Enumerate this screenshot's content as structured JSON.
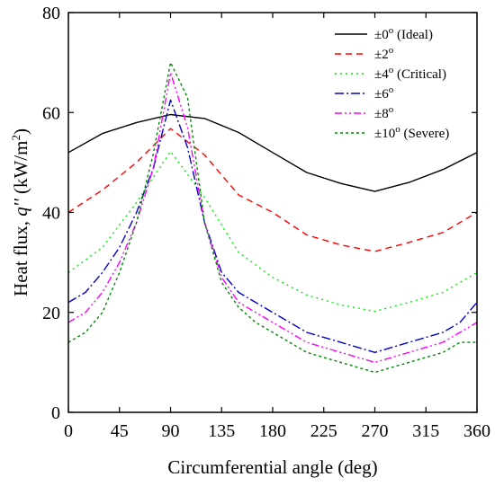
{
  "chart_data": {
    "type": "line",
    "title": "",
    "xlabel": "Circumferential angle (deg)",
    "ylabel_main": "Heat flux, ",
    "ylabel_var": "q''",
    "ylabel_unit_open": " (kW/m",
    "ylabel_unit_exp": "2",
    "ylabel_unit_close": ")",
    "xlim": [
      0,
      360
    ],
    "ylim": [
      0,
      80
    ],
    "xticks": [
      0,
      45,
      90,
      135,
      180,
      225,
      270,
      315,
      360
    ],
    "yticks": [
      0,
      20,
      40,
      60,
      80
    ],
    "grid": false,
    "legend_position": "top-right",
    "series": [
      {
        "name_prefix": "±0",
        "name_sup": "o",
        "name_suffix": " (Ideal)",
        "color": "#000000",
        "dash": "",
        "x": [
          0,
          30,
          60,
          90,
          120,
          150,
          180,
          210,
          240,
          270,
          300,
          330,
          360
        ],
        "values": [
          52,
          55.8,
          58,
          59.6,
          58.8,
          56,
          52,
          48,
          45.8,
          44.2,
          46,
          48.6,
          52
        ]
      },
      {
        "name_prefix": "±2",
        "name_sup": "o",
        "name_suffix": "",
        "color": "#ff0000",
        "dash": "7,5",
        "x": [
          0,
          30,
          60,
          90,
          120,
          150,
          180,
          210,
          240,
          270,
          300,
          330,
          360
        ],
        "values": [
          40,
          44.5,
          50,
          56.8,
          51.5,
          43.5,
          40,
          35.5,
          33.5,
          32.2,
          34,
          36,
          40
        ]
      },
      {
        "name_prefix": "±4",
        "name_sup": "o",
        "name_suffix": "  (Critical)",
        "color": "#00ee00",
        "dash": "2,4",
        "x": [
          0,
          30,
          60,
          90,
          120,
          150,
          180,
          210,
          240,
          270,
          300,
          330,
          360
        ],
        "values": [
          28,
          33,
          42,
          52.2,
          43,
          32,
          27,
          23.5,
          21.5,
          20.2,
          22,
          24,
          28
        ]
      },
      {
        "name_prefix": "±6",
        "name_sup": "o",
        "name_suffix": "",
        "color": "#0000cc",
        "dash": "10,3,2,3",
        "x": [
          0,
          15,
          30,
          45,
          60,
          75,
          90,
          105,
          120,
          135,
          150,
          165,
          180,
          210,
          240,
          270,
          300,
          330,
          345,
          360
        ],
        "values": [
          22,
          24,
          28,
          33,
          40,
          49,
          62.5,
          53,
          38,
          28,
          24,
          22,
          20,
          16,
          14,
          12,
          14,
          16,
          18,
          22
        ]
      },
      {
        "name_prefix": "±8",
        "name_sup": "o",
        "name_suffix": "",
        "color": "#ff00ff",
        "dash": "8,3,2,3,2,3",
        "x": [
          0,
          15,
          30,
          45,
          60,
          75,
          90,
          105,
          120,
          135,
          150,
          165,
          180,
          210,
          240,
          270,
          300,
          330,
          345,
          360
        ],
        "values": [
          18,
          20,
          24,
          30,
          38,
          49,
          68,
          57,
          38,
          27,
          22,
          20,
          18,
          14,
          12,
          10,
          12,
          14,
          16,
          18
        ]
      },
      {
        "name_prefix": "±10",
        "name_sup": "o",
        "name_suffix": "  (Severe)",
        "color": "#008800",
        "dash": "3,3",
        "x": [
          0,
          15,
          30,
          45,
          60,
          75,
          90,
          105,
          120,
          135,
          150,
          165,
          180,
          210,
          240,
          270,
          300,
          330,
          345,
          360
        ],
        "values": [
          14,
          16,
          20,
          28,
          38,
          52,
          70,
          63,
          38,
          26,
          21,
          18,
          16,
          12,
          10,
          8,
          10,
          12,
          14,
          14
        ]
      }
    ]
  }
}
